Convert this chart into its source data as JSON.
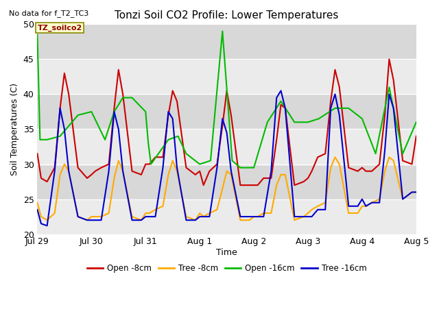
{
  "title": "Tonzi Soil CO2 Profile: Lower Temperatures",
  "subtitle": "No data for f_T2_TC3",
  "ylabel": "Soil Temperatures (C)",
  "xlabel": "Time",
  "ylim": [
    20,
    50
  ],
  "yticks": [
    20,
    25,
    30,
    35,
    40,
    45,
    50
  ],
  "fig_bg_color": "#ffffff",
  "plot_bg_light": "#f0f0f0",
  "plot_bg_dark": "#e0e0e0",
  "legend_label": "TZ_soilco2",
  "series": {
    "open_8cm": {
      "label": "Open -8cm",
      "color": "#cc0000",
      "lw": 1.5,
      "x": [
        0.0,
        0.07,
        0.18,
        0.32,
        0.42,
        0.5,
        0.58,
        0.75,
        0.92,
        1.0,
        1.07,
        1.18,
        1.32,
        1.42,
        1.5,
        1.58,
        1.75,
        1.92,
        2.0,
        2.07,
        2.18,
        2.32,
        2.42,
        2.5,
        2.58,
        2.75,
        2.92,
        3.0,
        3.07,
        3.18,
        3.32,
        3.42,
        3.5,
        3.58,
        3.75,
        3.92,
        4.0,
        4.07,
        4.18,
        4.32,
        4.42,
        4.5,
        4.58,
        4.75,
        4.92,
        5.0,
        5.07,
        5.18,
        5.32,
        5.42,
        5.5,
        5.58,
        5.75,
        5.92,
        6.0,
        6.07,
        6.18,
        6.32,
        6.42,
        6.5,
        6.58,
        6.75,
        6.92,
        7.0
      ],
      "y": [
        31.5,
        28.0,
        27.5,
        29.5,
        38.0,
        43.0,
        40.0,
        29.5,
        28.0,
        28.5,
        29.0,
        29.5,
        30.0,
        38.0,
        43.5,
        40.0,
        29.0,
        28.5,
        30.0,
        30.0,
        31.0,
        31.0,
        37.0,
        40.5,
        39.0,
        29.5,
        28.5,
        29.0,
        27.0,
        29.0,
        30.0,
        35.5,
        40.5,
        37.0,
        27.0,
        27.0,
        27.0,
        27.0,
        28.0,
        28.0,
        33.5,
        38.5,
        38.0,
        27.0,
        27.5,
        28.0,
        29.0,
        31.0,
        31.5,
        39.0,
        43.5,
        41.0,
        29.5,
        29.0,
        29.5,
        29.0,
        29.0,
        30.0,
        37.0,
        45.0,
        42.0,
        30.5,
        30.0,
        34.0
      ]
    },
    "tree_8cm": {
      "label": "Tree -8cm",
      "color": "#ffaa00",
      "lw": 1.5,
      "x": [
        0.0,
        0.07,
        0.18,
        0.32,
        0.42,
        0.5,
        0.58,
        0.75,
        0.92,
        1.0,
        1.07,
        1.18,
        1.32,
        1.42,
        1.5,
        1.58,
        1.75,
        1.92,
        2.0,
        2.07,
        2.18,
        2.32,
        2.42,
        2.5,
        2.58,
        2.75,
        2.92,
        3.0,
        3.07,
        3.18,
        3.32,
        3.42,
        3.5,
        3.58,
        3.75,
        3.92,
        4.0,
        4.07,
        4.18,
        4.32,
        4.42,
        4.5,
        4.58,
        4.75,
        4.92,
        5.0,
        5.07,
        5.18,
        5.32,
        5.42,
        5.5,
        5.58,
        5.75,
        5.92,
        6.0,
        6.07,
        6.18,
        6.32,
        6.42,
        6.5,
        6.58,
        6.75,
        6.92,
        7.0
      ],
      "y": [
        24.5,
        22.5,
        22.0,
        23.0,
        28.5,
        30.0,
        29.0,
        22.5,
        22.0,
        22.5,
        22.5,
        22.5,
        23.0,
        28.0,
        30.5,
        29.0,
        22.5,
        22.0,
        23.0,
        23.0,
        23.5,
        24.0,
        28.5,
        30.5,
        29.0,
        22.5,
        22.0,
        23.0,
        22.5,
        23.0,
        23.5,
        26.5,
        29.0,
        28.5,
        22.0,
        22.0,
        22.5,
        22.5,
        23.0,
        23.0,
        27.0,
        28.5,
        28.5,
        22.0,
        22.5,
        23.0,
        23.5,
        24.0,
        24.5,
        29.5,
        31.0,
        30.0,
        23.0,
        23.0,
        24.0,
        24.0,
        24.5,
        25.0,
        29.0,
        31.0,
        30.5,
        25.0,
        26.0,
        26.0
      ]
    },
    "open_16cm": {
      "label": "Open -16cm",
      "color": "#00bb00",
      "lw": 1.5,
      "x": [
        0.0,
        0.05,
        0.18,
        0.42,
        0.75,
        1.0,
        1.25,
        1.42,
        1.58,
        1.75,
        2.0,
        2.05,
        2.1,
        2.42,
        2.6,
        2.75,
        3.0,
        3.2,
        3.42,
        3.6,
        3.75,
        4.0,
        4.25,
        4.5,
        4.75,
        5.0,
        5.2,
        5.5,
        5.75,
        6.0,
        6.25,
        6.5,
        6.75,
        7.0
      ],
      "y": [
        48.5,
        33.5,
        33.5,
        34.0,
        37.0,
        37.5,
        33.5,
        37.5,
        39.5,
        39.5,
        37.5,
        33.0,
        30.0,
        33.5,
        34.0,
        31.5,
        30.0,
        30.5,
        49.0,
        30.5,
        29.5,
        29.5,
        36.0,
        39.0,
        36.0,
        36.0,
        36.5,
        38.0,
        38.0,
        36.5,
        31.5,
        41.0,
        31.5,
        36.0
      ]
    },
    "tree_16cm": {
      "label": "Tree -16cm",
      "color": "#0000cc",
      "lw": 1.5,
      "x": [
        0.0,
        0.07,
        0.18,
        0.32,
        0.42,
        0.5,
        0.58,
        0.75,
        0.92,
        1.0,
        1.07,
        1.18,
        1.32,
        1.42,
        1.5,
        1.58,
        1.75,
        1.92,
        2.0,
        2.07,
        2.18,
        2.32,
        2.42,
        2.5,
        2.58,
        2.75,
        2.92,
        3.0,
        3.07,
        3.18,
        3.32,
        3.42,
        3.5,
        3.58,
        3.75,
        3.92,
        4.0,
        4.07,
        4.18,
        4.32,
        4.42,
        4.5,
        4.58,
        4.75,
        4.92,
        5.0,
        5.07,
        5.18,
        5.32,
        5.42,
        5.5,
        5.58,
        5.75,
        5.92,
        6.0,
        6.07,
        6.18,
        6.32,
        6.42,
        6.5,
        6.58,
        6.75,
        6.92,
        7.0
      ],
      "y": [
        23.5,
        21.5,
        21.2,
        29.0,
        38.0,
        35.0,
        29.0,
        22.5,
        22.0,
        22.0,
        22.0,
        22.0,
        29.0,
        37.5,
        35.0,
        29.0,
        22.0,
        22.0,
        22.5,
        22.5,
        22.5,
        29.5,
        37.5,
        36.5,
        29.5,
        22.0,
        22.0,
        22.5,
        22.5,
        22.5,
        29.5,
        36.5,
        34.5,
        29.0,
        22.5,
        22.5,
        22.5,
        22.5,
        22.5,
        29.0,
        39.5,
        40.5,
        38.0,
        22.5,
        22.5,
        22.5,
        22.5,
        23.5,
        23.5,
        38.0,
        40.0,
        37.0,
        24.0,
        24.0,
        25.0,
        24.0,
        24.5,
        24.5,
        32.0,
        40.0,
        38.0,
        25.0,
        26.0,
        26.0
      ]
    }
  },
  "xticks": {
    "positions": [
      0,
      1,
      2,
      3,
      4,
      5,
      6,
      7
    ],
    "labels": [
      "Jul 29",
      "Jul 30",
      "Jul 31",
      "Aug 1",
      "Aug 2",
      "Aug 3",
      "Aug 4",
      "Aug 5"
    ]
  },
  "bg_bands": [
    {
      "ymin": 20,
      "ymax": 25,
      "color": "#ebebeb"
    },
    {
      "ymin": 25,
      "ymax": 30,
      "color": "#d8d8d8"
    },
    {
      "ymin": 30,
      "ymax": 35,
      "color": "#ebebeb"
    },
    {
      "ymin": 35,
      "ymax": 40,
      "color": "#d8d8d8"
    },
    {
      "ymin": 40,
      "ymax": 45,
      "color": "#ebebeb"
    },
    {
      "ymin": 45,
      "ymax": 50,
      "color": "#d8d8d8"
    }
  ],
  "hline_color": "#ffffff",
  "hline_lw": 1.0
}
